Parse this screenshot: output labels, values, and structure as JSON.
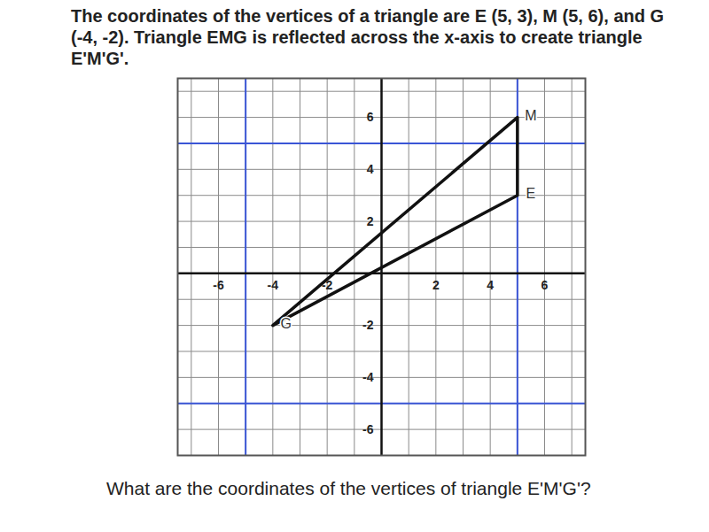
{
  "chart_data": {
    "type": "polygon",
    "title": "The coordinates of the vertices of a triangle are E (5, 3), M (5, 6), and G (-4, -2). Triangle EMG is reflected across the x-axis to create triangle E'M'G'.",
    "caption": "What are the coordinates of the vertices of triangle E'M'G'?",
    "points": [
      {
        "label": "E",
        "x": 5,
        "y": 3
      },
      {
        "label": "M",
        "x": 5,
        "y": 6
      },
      {
        "label": "G",
        "x": -4,
        "y": -2
      }
    ],
    "reference_lines": {
      "x": [
        -5,
        5
      ],
      "y": [
        -5,
        5
      ]
    },
    "xlim": [
      -7.5,
      7.5
    ],
    "ylim": [
      -7,
      7.5
    ],
    "xticks": [
      -6,
      -4,
      -2,
      2,
      4,
      6
    ],
    "yticks": [
      -6,
      -4,
      -2,
      2,
      4,
      6
    ],
    "grid": true,
    "color": "#111111"
  }
}
